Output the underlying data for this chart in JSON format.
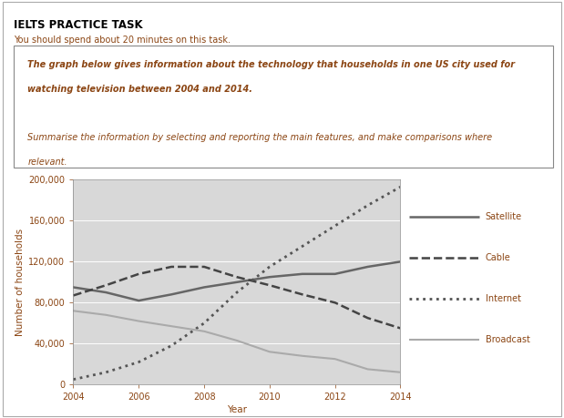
{
  "title_main": "IELTS PRACTICE TASK",
  "subtitle": "You should spend about 20 minutes on this task.",
  "prompt_lines": [
    "The graph below gives information about the technology that households in one US city used for",
    "watching television between 2004 and 2014.",
    "",
    "Summarise the information by selecting and reporting the main features, and make comparisons where",
    "relevant."
  ],
  "text_color": "#8B4513",
  "xlabel": "Year",
  "ylabel": "Number of households",
  "xlim": [
    2004,
    2014
  ],
  "ylim": [
    0,
    200000
  ],
  "yticks": [
    0,
    40000,
    80000,
    120000,
    160000,
    200000
  ],
  "ytick_labels": [
    "0",
    "40,000",
    "80,000",
    "120,000",
    "160,000",
    "200,000"
  ],
  "xticks": [
    2004,
    2006,
    2008,
    2010,
    2012,
    2014
  ],
  "background_color": "#d8d8d8",
  "series": {
    "Satellite": {
      "x": [
        2004,
        2005,
        2006,
        2007,
        2008,
        2009,
        2010,
        2011,
        2012,
        2013,
        2014
      ],
      "y": [
        95000,
        90000,
        82000,
        88000,
        95000,
        100000,
        105000,
        108000,
        108000,
        115000,
        120000
      ],
      "color": "#666666",
      "linestyle": "solid",
      "linewidth": 1.8
    },
    "Cable": {
      "x": [
        2004,
        2005,
        2006,
        2007,
        2008,
        2009,
        2010,
        2011,
        2012,
        2013,
        2014
      ],
      "y": [
        87000,
        97000,
        108000,
        115000,
        115000,
        105000,
        97000,
        88000,
        80000,
        65000,
        55000
      ],
      "color": "#444444",
      "linestyle": "dashed",
      "linewidth": 1.8
    },
    "Internet": {
      "x": [
        2004,
        2005,
        2006,
        2007,
        2008,
        2009,
        2010,
        2011,
        2012,
        2013,
        2014
      ],
      "y": [
        5000,
        12000,
        22000,
        38000,
        60000,
        90000,
        115000,
        135000,
        155000,
        175000,
        193000
      ],
      "color": "#555555",
      "linestyle": "dotted",
      "linewidth": 2.0
    },
    "Broadcast": {
      "x": [
        2004,
        2005,
        2006,
        2007,
        2008,
        2009,
        2010,
        2011,
        2012,
        2013,
        2014
      ],
      "y": [
        72000,
        68000,
        62000,
        57000,
        52000,
        43000,
        32000,
        28000,
        25000,
        15000,
        12000
      ],
      "color": "#aaaaaa",
      "linestyle": "solid",
      "linewidth": 1.5
    }
  },
  "legend_items": [
    {
      "label": "Satellite",
      "color": "#666666",
      "linestyle": "solid",
      "linewidth": 1.8
    },
    {
      "label": "Cable",
      "color": "#444444",
      "linestyle": "dashed",
      "linewidth": 1.8
    },
    {
      "label": "Internet",
      "color": "#555555",
      "linestyle": "dotted",
      "linewidth": 2.0
    },
    {
      "label": "Broadcast",
      "color": "#aaaaaa",
      "linestyle": "solid",
      "linewidth": 1.5
    }
  ]
}
